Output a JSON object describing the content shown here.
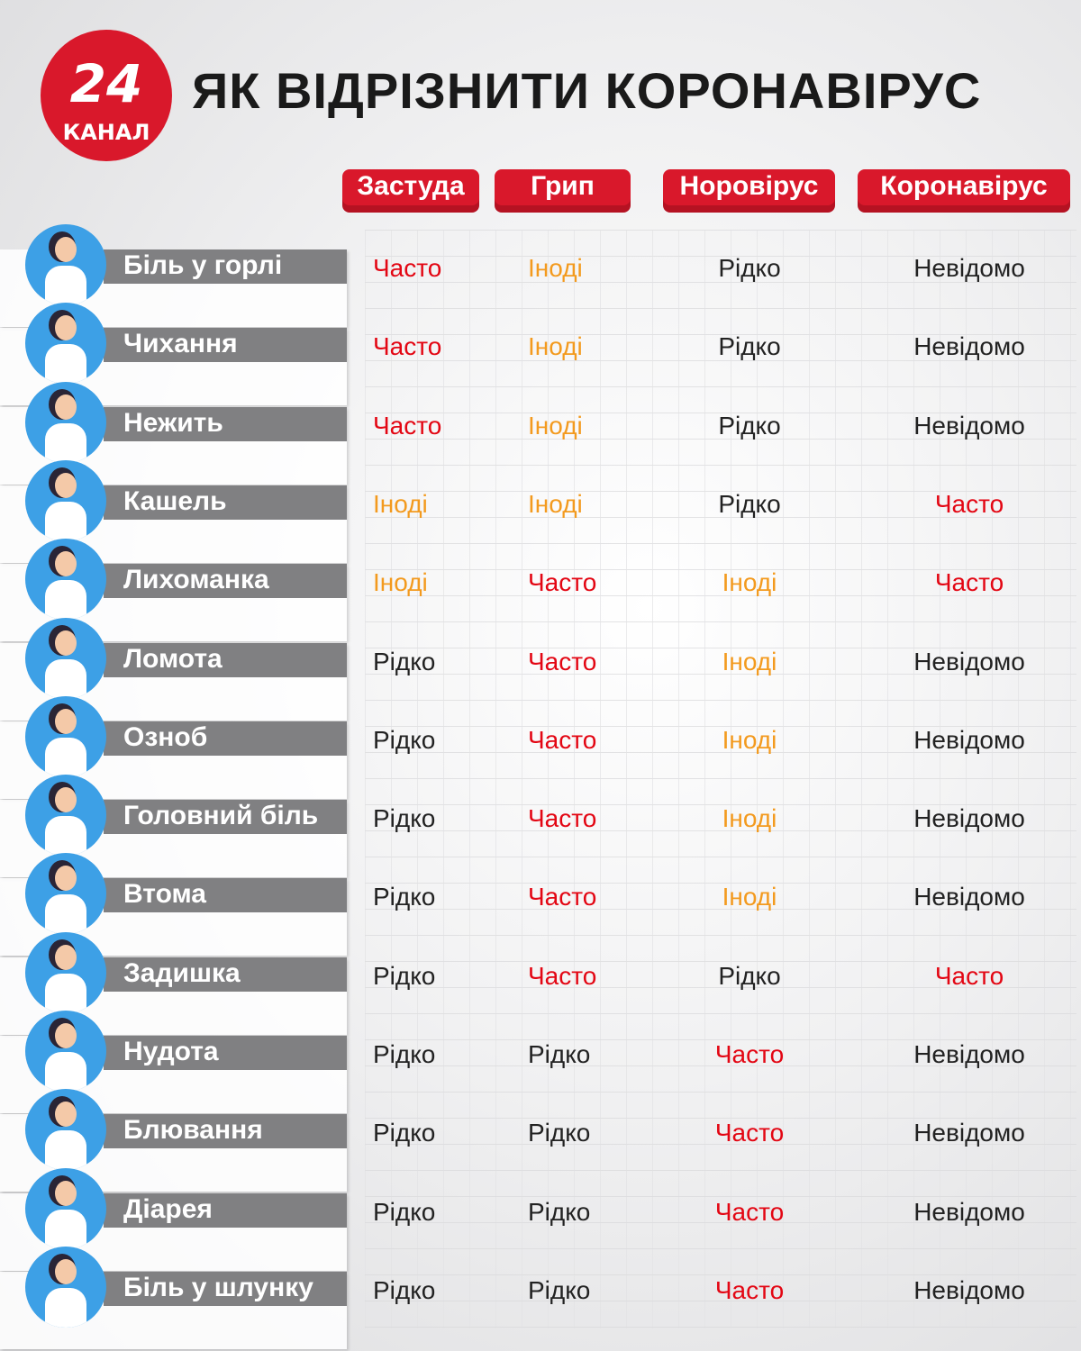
{
  "logo": {
    "number": "24",
    "name": "КАНАЛ"
  },
  "title": "ЯК ВІДРІЗНИТИ КОРОНАВІРУС",
  "colors": {
    "brand": "#d9182b",
    "often": "#e30613",
    "sometimes": "#f39a1e",
    "neutral": "#222222",
    "label_bg": "#808082"
  },
  "columns": [
    "Застуда",
    "Грип",
    "Норовірус",
    "Коронавірус"
  ],
  "rows": [
    {
      "symptom": "Біль у горлі",
      "values": [
        "Часто",
        "Іноді",
        "Рідко",
        "Невідомо"
      ]
    },
    {
      "symptom": "Чихання",
      "values": [
        "Часто",
        "Іноді",
        "Рідко",
        "Невідомо"
      ]
    },
    {
      "symptom": "Нежить",
      "values": [
        "Часто",
        "Іноді",
        "Рідко",
        "Невідомо"
      ]
    },
    {
      "symptom": "Кашель",
      "values": [
        "Іноді",
        "Іноді",
        "Рідко",
        "Часто"
      ]
    },
    {
      "symptom": "Лихоманка",
      "values": [
        "Іноді",
        "Часто",
        "Іноді",
        "Часто"
      ]
    },
    {
      "symptom": "Ломота",
      "values": [
        "Рідко",
        "Часто",
        "Іноді",
        "Невідомо"
      ]
    },
    {
      "symptom": "Озноб",
      "values": [
        "Рідко",
        "Часто",
        "Іноді",
        "Невідомо"
      ]
    },
    {
      "symptom": "Головний біль",
      "values": [
        "Рідко",
        "Часто",
        "Іноді",
        "Невідомо"
      ]
    },
    {
      "symptom": "Втома",
      "values": [
        "Рідко",
        "Часто",
        "Іноді",
        "Невідомо"
      ]
    },
    {
      "symptom": "Задишка",
      "values": [
        "Рідко",
        "Часто",
        "Рідко",
        "Часто"
      ]
    },
    {
      "symptom": "Нудота",
      "values": [
        "Рідко",
        "Рідко",
        "Часто",
        "Невідомо"
      ]
    },
    {
      "symptom": "Блювання",
      "values": [
        "Рідко",
        "Рідко",
        "Часто",
        "Невідомо"
      ]
    },
    {
      "symptom": "Діарея",
      "values": [
        "Рідко",
        "Рідко",
        "Часто",
        "Невідомо"
      ]
    },
    {
      "symptom": "Біль у шлунку",
      "values": [
        "Рідко",
        "Рідко",
        "Часто",
        "Невідомо"
      ]
    }
  ]
}
